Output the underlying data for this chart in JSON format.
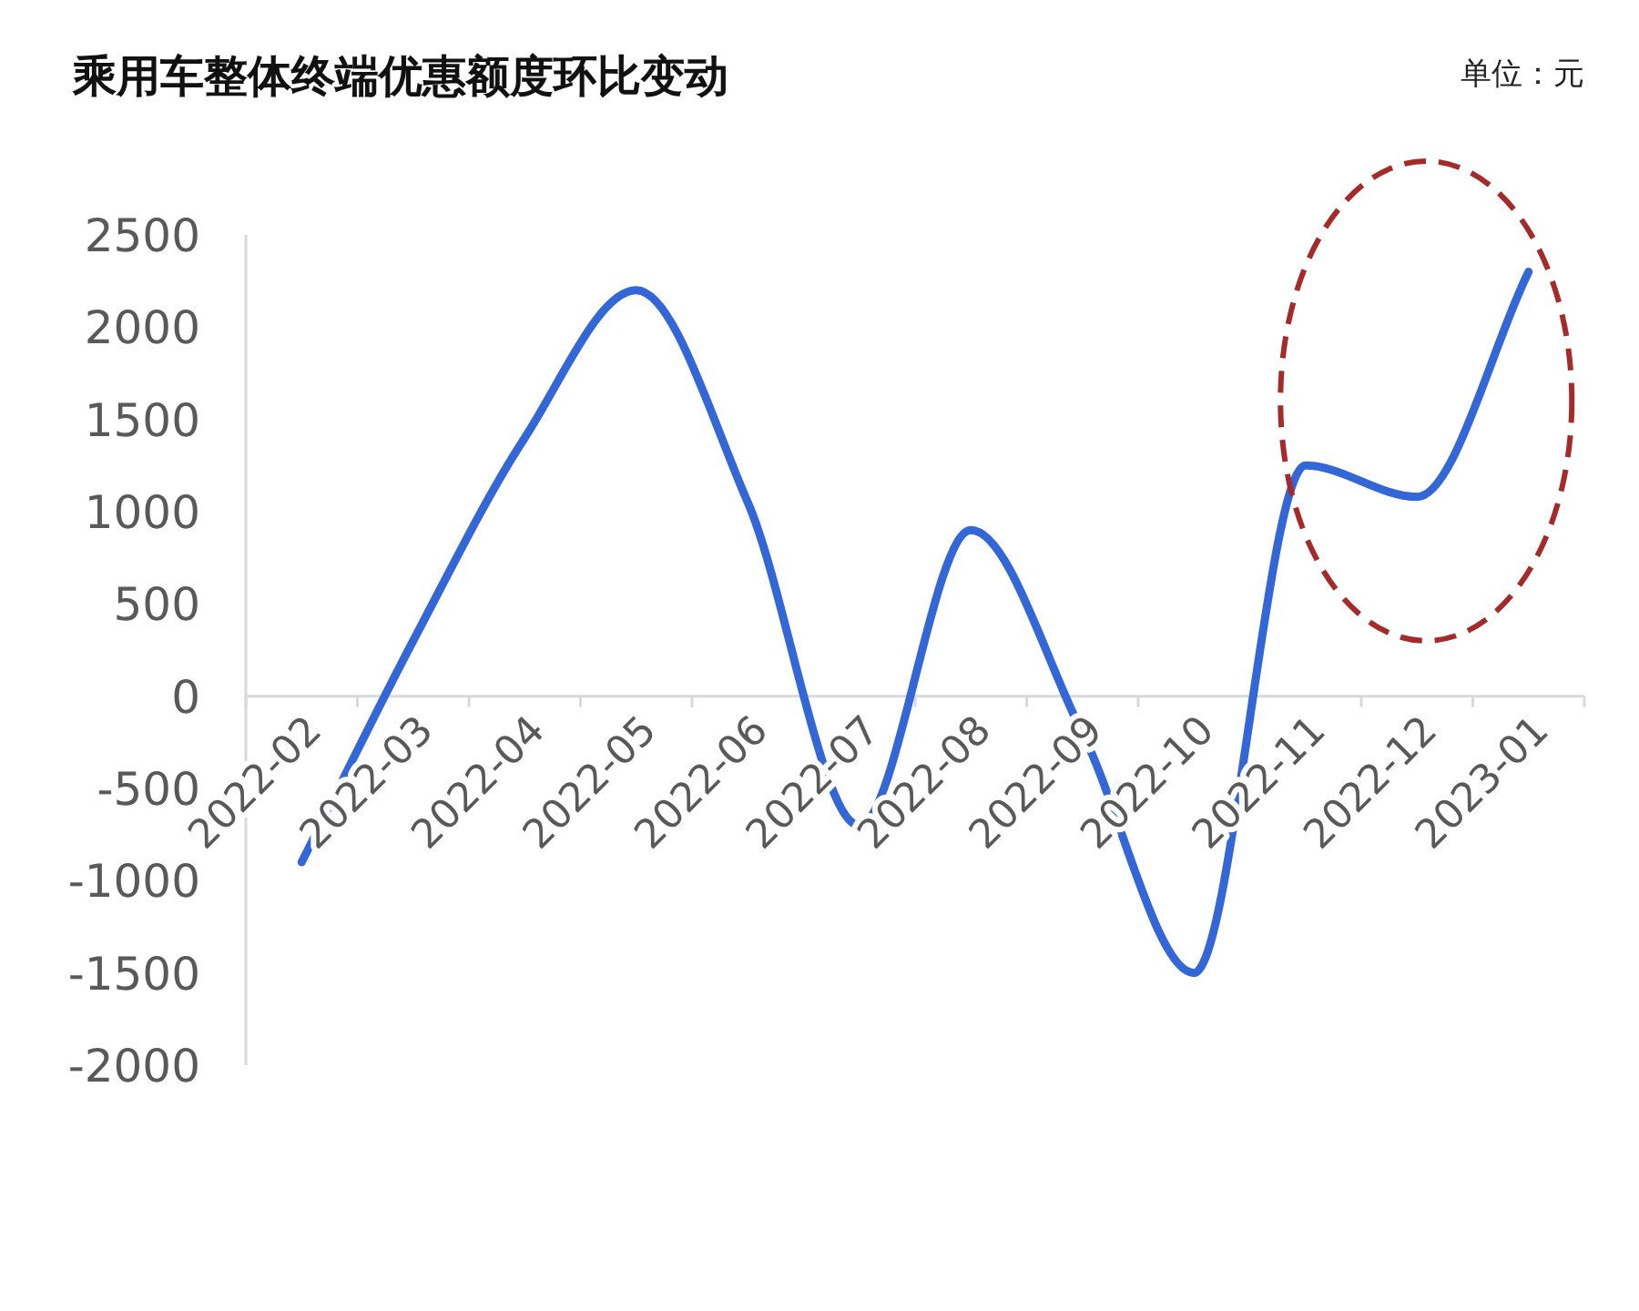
{
  "chart_data": {
    "type": "line",
    "title": "乘用车整体终端优惠额度环比变动",
    "annotations": [
      "单位：元"
    ],
    "categories": [
      "2022-02",
      "2022-03",
      "2022-04",
      "2022-05",
      "2022-06",
      "2022-07",
      "2022-08",
      "2022-09",
      "2022-10",
      "2022-11",
      "2022-12",
      "2023-01"
    ],
    "series": [
      {
        "color": "#3366d6",
        "values": [
          -900,
          300,
          1400,
          2200,
          1050,
          -700,
          900,
          -200,
          -1500,
          1250,
          1080,
          2300
        ]
      }
    ],
    "ylim": [
      -2000,
      2500
    ],
    "yticks": [
      -2000,
      -1500,
      -1000,
      -500,
      0,
      500,
      1000,
      1500,
      2000,
      2500
    ],
    "grid": false,
    "marker": "none",
    "line_style": "solid"
  }
}
